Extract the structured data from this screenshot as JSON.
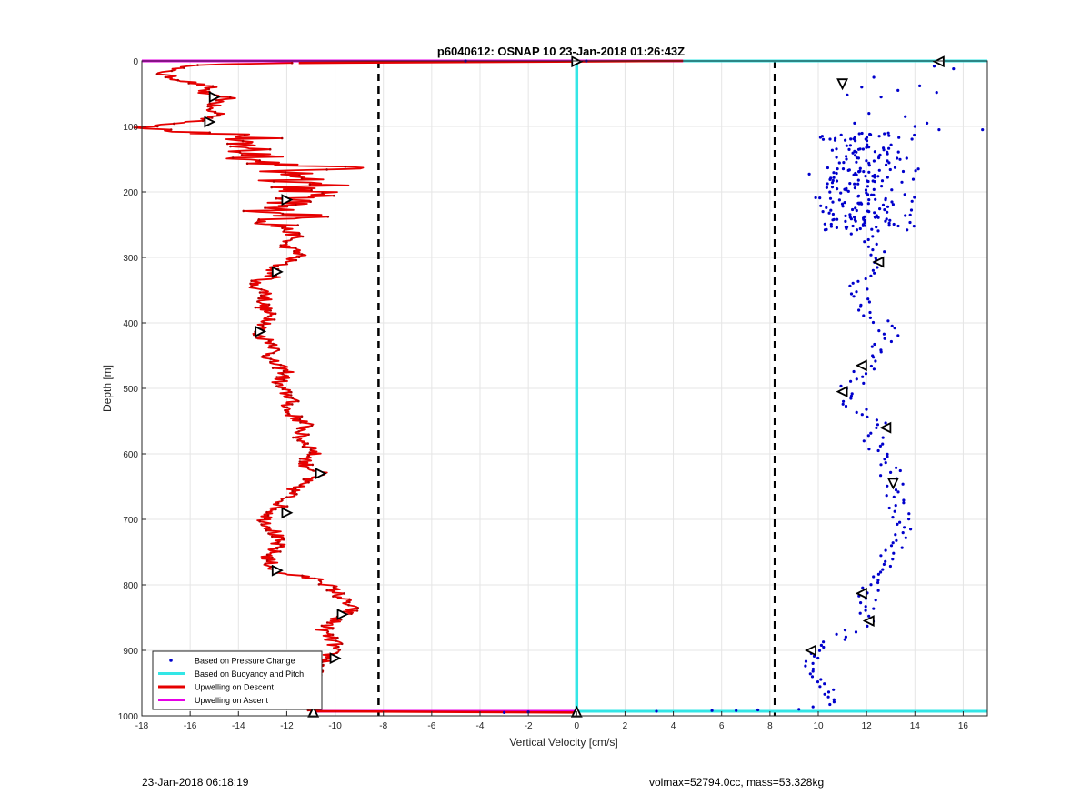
{
  "footer": {
    "left_text": "23-Jan-2018 06:18:19",
    "right_text": "volmax=52794.0cc, mass=53.328kg"
  },
  "colors": {
    "pressure": "#0000cc",
    "buoyancy": "#33e6e6",
    "descent": "#e60000",
    "ascent": "#e600e6",
    "threshold": "#000000",
    "grid": "#e5e5e5"
  },
  "chart_data": {
    "type": "scatter",
    "title": "p6040612: OSNAP 10 23-Jan-2018 01:26:43Z",
    "xlabel": "Vertical Velocity [cm/s]",
    "ylabel": "Depth [m]",
    "xlim": [
      -18,
      17
    ],
    "ylim": [
      0,
      1000
    ],
    "y_reversed": true,
    "grid": true,
    "xticks": [
      -18,
      -16,
      -14,
      -12,
      -10,
      -8,
      -6,
      -4,
      -2,
      0,
      2,
      4,
      6,
      8,
      10,
      12,
      14,
      16
    ],
    "yticks": [
      0,
      100,
      200,
      300,
      400,
      500,
      600,
      700,
      800,
      900,
      1000
    ],
    "threshold_lines_x": [
      -8.2,
      8.2
    ],
    "legend": {
      "placement": "bottom-left",
      "entries": [
        {
          "label": "Based on Pressure Change",
          "style": "point",
          "series": "pressure"
        },
        {
          "label": "Based on Buoyancy and Pitch",
          "style": "line",
          "series": "buoyancy"
        },
        {
          "label": "Upwelling on Descent",
          "style": "line",
          "series": "descent"
        },
        {
          "label": "Upwelling on Ascent",
          "style": "line",
          "series": "ascent"
        }
      ]
    },
    "series": {
      "descent_profile": [
        [
          -11.5,
          3
        ],
        [
          -15,
          5
        ],
        [
          -16.8,
          12
        ],
        [
          -17.2,
          20
        ],
        [
          -16.5,
          28
        ],
        [
          -15.2,
          40
        ],
        [
          -15.6,
          50
        ],
        [
          -14.4,
          57
        ],
        [
          -15.0,
          65
        ],
        [
          -15.3,
          75
        ],
        [
          -14.6,
          82
        ],
        [
          -15.5,
          90
        ],
        [
          -17.5,
          100
        ],
        [
          -16.0,
          108
        ],
        [
          -14.2,
          112
        ],
        [
          -13.3,
          118
        ],
        [
          -14.8,
          125
        ],
        [
          -13.2,
          132
        ],
        [
          -13.8,
          138
        ],
        [
          -12.6,
          145
        ],
        [
          -13.5,
          152
        ],
        [
          -12.1,
          158
        ],
        [
          -9.5,
          163
        ],
        [
          -12.8,
          170
        ],
        [
          -10.2,
          178
        ],
        [
          -12.4,
          184
        ],
        [
          -10.0,
          190
        ],
        [
          -12.6,
          196
        ],
        [
          -9.9,
          203
        ],
        [
          -12.5,
          210
        ],
        [
          -11.9,
          218
        ],
        [
          -13.0,
          226
        ],
        [
          -11.2,
          235
        ],
        [
          -12.3,
          245
        ],
        [
          -12.0,
          258
        ],
        [
          -11.6,
          268
        ],
        [
          -12.2,
          280
        ],
        [
          -11.4,
          295
        ],
        [
          -12.5,
          315
        ],
        [
          -12.6,
          330
        ],
        [
          -13.5,
          340
        ],
        [
          -12.8,
          355
        ],
        [
          -13.0,
          375
        ],
        [
          -12.6,
          395
        ],
        [
          -13.3,
          415
        ],
        [
          -12.4,
          435
        ],
        [
          -12.8,
          455
        ],
        [
          -12.0,
          475
        ],
        [
          -12.4,
          495
        ],
        [
          -11.8,
          515
        ],
        [
          -12.0,
          535
        ],
        [
          -11.2,
          555
        ],
        [
          -11.5,
          575
        ],
        [
          -10.8,
          595
        ],
        [
          -11.3,
          615
        ],
        [
          -10.6,
          630
        ],
        [
          -11.5,
          645
        ],
        [
          -11.8,
          660
        ],
        [
          -12.3,
          680
        ],
        [
          -12.9,
          700
        ],
        [
          -12.5,
          720
        ],
        [
          -12.4,
          740
        ],
        [
          -12.8,
          760
        ],
        [
          -12.5,
          780
        ],
        [
          -10.5,
          793
        ],
        [
          -10.0,
          810
        ],
        [
          -9.6,
          825
        ],
        [
          -9.3,
          838
        ],
        [
          -9.9,
          850
        ],
        [
          -10.5,
          870
        ],
        [
          -10.0,
          890
        ],
        [
          -10.3,
          913
        ],
        [
          -10.8,
          930
        ],
        [
          -11.0,
          950
        ],
        [
          -10.9,
          970
        ],
        [
          -10.9,
          993
        ]
      ],
      "descent_noise": {
        "depth_range": [
          100,
          255
        ],
        "amplitude": 1.4
      },
      "pressure_points": [
        [
          14.8,
          8
        ],
        [
          15.6,
          12
        ],
        [
          11.0,
          30
        ],
        [
          12.3,
          25
        ],
        [
          11.8,
          40
        ],
        [
          14.2,
          38
        ],
        [
          12.6,
          55
        ],
        [
          11.2,
          52
        ],
        [
          13.3,
          45
        ],
        [
          14.9,
          48
        ],
        [
          12.1,
          80
        ],
        [
          13.6,
          85
        ],
        [
          14.0,
          100
        ],
        [
          15.0,
          105
        ],
        [
          16.8,
          105
        ],
        [
          12.9,
          110
        ],
        [
          14.5,
          95
        ],
        [
          11.5,
          95
        ]
      ],
      "pressure_cloud": {
        "depth_range": [
          110,
          260
        ],
        "x_range": [
          9.5,
          14.3
        ],
        "count": 230
      },
      "pressure_profile": [
        [
          11.8,
          265
        ],
        [
          12.1,
          280
        ],
        [
          12.6,
          300
        ],
        [
          12.2,
          320
        ],
        [
          11.6,
          340
        ],
        [
          11.8,
          360
        ],
        [
          12.0,
          380
        ],
        [
          12.6,
          400
        ],
        [
          13.0,
          420
        ],
        [
          12.5,
          445
        ],
        [
          12.0,
          470
        ],
        [
          11.3,
          500
        ],
        [
          11.2,
          520
        ],
        [
          11.8,
          540
        ],
        [
          12.7,
          560
        ],
        [
          12.2,
          580
        ],
        [
          12.5,
          600
        ],
        [
          13.0,
          625
        ],
        [
          13.1,
          650
        ],
        [
          13.2,
          675
        ],
        [
          13.4,
          700
        ],
        [
          13.5,
          720
        ],
        [
          13.2,
          740
        ],
        [
          12.9,
          760
        ],
        [
          12.6,
          780
        ],
        [
          12.3,
          800
        ],
        [
          12.0,
          820
        ],
        [
          12.2,
          840
        ],
        [
          11.8,
          860
        ],
        [
          11.0,
          880
        ],
        [
          10.0,
          900
        ],
        [
          9.7,
          920
        ],
        [
          10.0,
          940
        ],
        [
          10.3,
          960
        ],
        [
          10.5,
          975
        ],
        [
          10.1,
          990
        ]
      ],
      "pressure_surface_points": [
        [
          -4.6,
          0
        ],
        [
          0.4,
          0
        ],
        [
          3.3,
          993
        ],
        [
          5.6,
          992
        ],
        [
          6.6,
          992
        ],
        [
          7.5,
          991
        ],
        [
          9.2,
          990
        ],
        [
          -2.0,
          994
        ],
        [
          -3.0,
          995
        ]
      ],
      "markers": [
        {
          "x": 0.0,
          "y": 1,
          "dir": "right"
        },
        {
          "x": 15.0,
          "y": 1,
          "dir": "left"
        },
        {
          "x": 11.0,
          "y": 35,
          "dir": "down"
        },
        {
          "x": -15.0,
          "y": 55,
          "dir": "right"
        },
        {
          "x": -15.2,
          "y": 93,
          "dir": "right"
        },
        {
          "x": -12.0,
          "y": 212,
          "dir": "right"
        },
        {
          "x": 12.5,
          "y": 307,
          "dir": "left"
        },
        {
          "x": -12.4,
          "y": 322,
          "dir": "right"
        },
        {
          "x": -13.1,
          "y": 413,
          "dir": "right"
        },
        {
          "x": 11.8,
          "y": 465,
          "dir": "left"
        },
        {
          "x": 11.0,
          "y": 505,
          "dir": "left"
        },
        {
          "x": 12.8,
          "y": 560,
          "dir": "left"
        },
        {
          "x": -10.6,
          "y": 630,
          "dir": "right"
        },
        {
          "x": 13.1,
          "y": 645,
          "dir": "down"
        },
        {
          "x": -12.0,
          "y": 690,
          "dir": "right"
        },
        {
          "x": -12.4,
          "y": 778,
          "dir": "right"
        },
        {
          "x": 11.8,
          "y": 813,
          "dir": "left"
        },
        {
          "x": -9.7,
          "y": 845,
          "dir": "right"
        },
        {
          "x": 12.1,
          "y": 855,
          "dir": "left"
        },
        {
          "x": -10.0,
          "y": 912,
          "dir": "right"
        },
        {
          "x": 9.7,
          "y": 900,
          "dir": "left"
        },
        {
          "x": -10.9,
          "y": 994,
          "dir": "up"
        },
        {
          "x": 0.0,
          "y": 994,
          "dir": "up"
        }
      ],
      "buoyancy_line": [
        [
          -11.0,
          0
        ],
        [
          17,
          0
        ]
      ],
      "buoyancy_vertical": [
        [
          0,
          0
        ],
        [
          0,
          993
        ]
      ],
      "buoyancy_bottom": [
        [
          0,
          993
        ],
        [
          17,
          993
        ]
      ],
      "ascent_top": [
        [
          -18,
          0
        ],
        [
          4.4,
          0
        ]
      ],
      "ascent_bottom": [
        [
          -11,
          993
        ],
        [
          0,
          993
        ]
      ],
      "descent_top": [
        [
          -11.5,
          3
        ],
        [
          4.4,
          0
        ]
      ],
      "descent_bottom": [
        [
          -10.9,
          993
        ],
        [
          0,
          995
        ]
      ]
    }
  }
}
